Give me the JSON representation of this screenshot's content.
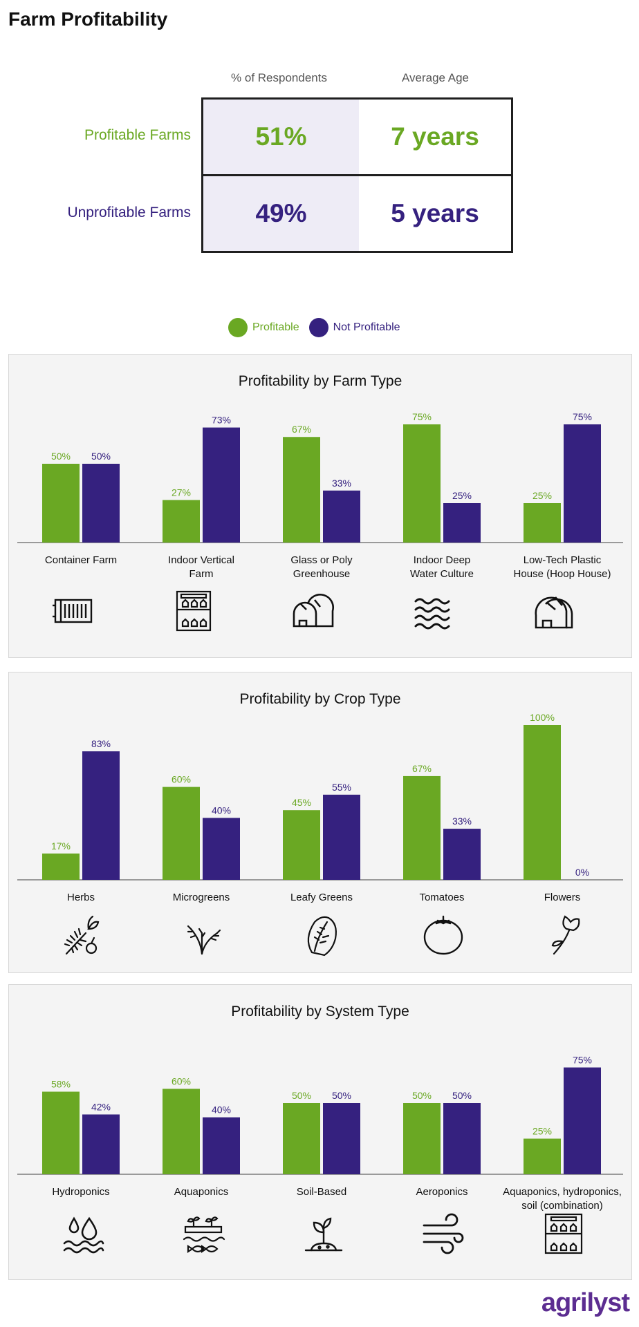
{
  "title": "Farm Profitability",
  "colors": {
    "profitable": "#6aa823",
    "not_profitable": "#35217f",
    "shade": "#eeecf6"
  },
  "summary": {
    "col1": "% of Respondents",
    "col2": "Average Age",
    "rows": [
      {
        "label": "Profitable Farms",
        "pct": "51%",
        "age": "7 years"
      },
      {
        "label": "Unprofitable Farms",
        "pct": "49%",
        "age": "5 years"
      }
    ]
  },
  "legend": {
    "profitable": "Profitable",
    "not_profitable": "Not Profitable"
  },
  "chart_data": [
    {
      "type": "bar",
      "title": "Profitability by Farm Type",
      "categories": [
        "Container Farm",
        "Indoor Vertical Farm",
        "Glass or Poly Greenhouse",
        "Indoor Deep Water Culture",
        "Low-Tech Plastic House (Hoop House)"
      ],
      "category_lines": [
        [
          "Container Farm"
        ],
        [
          "Indoor Vertical",
          "Farm"
        ],
        [
          "Glass or Poly",
          "Greenhouse"
        ],
        [
          "Indoor Deep",
          "Water Culture"
        ],
        [
          "Low-Tech Plastic",
          "House (Hoop House)"
        ]
      ],
      "series": [
        {
          "name": "Profitable",
          "values": [
            50,
            27,
            67,
            75,
            25
          ]
        },
        {
          "name": "Not Profitable",
          "values": [
            50,
            73,
            33,
            25,
            75
          ]
        }
      ],
      "value_labels": [
        [
          "50%",
          "27%",
          "67%",
          "75%",
          "25%"
        ],
        [
          "50%",
          "73%",
          "33%",
          "25%",
          "75%"
        ]
      ],
      "icons": [
        "shipping-container-icon",
        "vertical-farm-icon",
        "greenhouse-icon",
        "water-waves-icon",
        "hoop-house-icon"
      ],
      "ylim": [
        0,
        100
      ]
    },
    {
      "type": "bar",
      "title": "Profitability by Crop Type",
      "categories": [
        "Herbs",
        "Microgreens",
        "Leafy Greens",
        "Tomatoes",
        "Flowers"
      ],
      "category_lines": [
        [
          "Herbs"
        ],
        [
          "Microgreens"
        ],
        [
          "Leafy Greens"
        ],
        [
          "Tomatoes"
        ],
        [
          "Flowers"
        ]
      ],
      "series": [
        {
          "name": "Profitable",
          "values": [
            17,
            60,
            45,
            67,
            100
          ]
        },
        {
          "name": "Not Profitable",
          "values": [
            83,
            40,
            55,
            33,
            0
          ]
        }
      ],
      "value_labels": [
        [
          "17%",
          "60%",
          "45%",
          "67%",
          "100%"
        ],
        [
          "83%",
          "40%",
          "55%",
          "33%",
          "0%"
        ]
      ],
      "icons": [
        "herbs-icon",
        "microgreens-icon",
        "lettuce-icon",
        "tomato-icon",
        "flower-icon"
      ],
      "ylim": [
        0,
        100
      ]
    },
    {
      "type": "bar",
      "title": "Profitability by System Type",
      "categories": [
        "Hydroponics",
        "Aquaponics",
        "Soil-Based",
        "Aeroponics",
        "Aquaponics, hydroponics, soil (combination)"
      ],
      "category_lines": [
        [
          "Hydroponics"
        ],
        [
          "Aquaponics"
        ],
        [
          "Soil-Based"
        ],
        [
          "Aeroponics"
        ],
        [
          "Aquaponics, hydroponics,",
          "soil (combination)"
        ]
      ],
      "series": [
        {
          "name": "Profitable",
          "values": [
            58,
            60,
            50,
            50,
            25
          ]
        },
        {
          "name": "Not Profitable",
          "values": [
            42,
            40,
            50,
            50,
            75
          ]
        }
      ],
      "value_labels": [
        [
          "58%",
          "60%",
          "50%",
          "50%",
          "25%"
        ],
        [
          "42%",
          "40%",
          "50%",
          "50%",
          "75%"
        ]
      ],
      "icons": [
        "water-drops-icon",
        "fish-plants-icon",
        "seedling-soil-icon",
        "wind-icon",
        "combination-farm-icon"
      ],
      "ylim": [
        0,
        100
      ]
    }
  ],
  "logo": {
    "text_main": "agrilyst"
  }
}
